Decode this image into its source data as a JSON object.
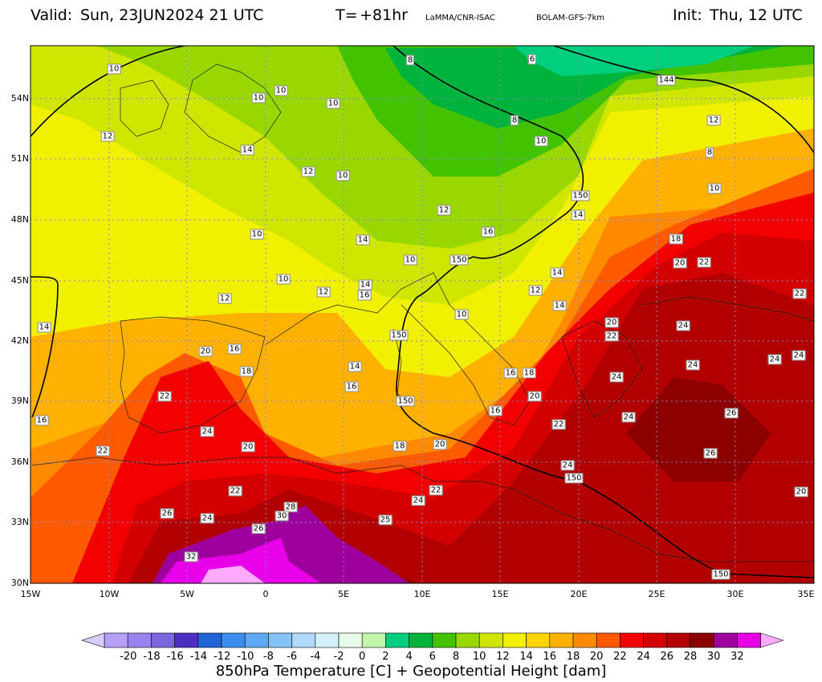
{
  "header": {
    "valid_label": "Valid:",
    "valid_value": "Sun, 23JUN2024   21 UTC",
    "t_label": "T=",
    "t_value": "+81hr",
    "credit": "LaMMA/CNR-ISAC",
    "model": "BOLAM-GFS-7km",
    "init_label": "Init:",
    "init_value": "Thu, 12 UTC"
  },
  "map": {
    "lat_ticks": [
      "54N",
      "51N",
      "48N",
      "45N",
      "42N",
      "39N",
      "36N",
      "33N",
      "30N"
    ],
    "lon_ticks": [
      "15W",
      "10W",
      "5W",
      "0",
      "5E",
      "10E",
      "15E",
      "20E",
      "25E",
      "30E",
      "35E"
    ],
    "temperature_labels": [
      "10",
      "10",
      "10",
      "10",
      "8",
      "6",
      "8",
      "10",
      "12",
      "12",
      "14",
      "12",
      "10",
      "8",
      "10",
      "12",
      "14",
      "16",
      "14",
      "10",
      "10",
      "10",
      "12",
      "12",
      "14",
      "12",
      "14",
      "10",
      "16",
      "14",
      "14",
      "16",
      "18",
      "20",
      "22",
      "20",
      "24",
      "14",
      "16",
      "18",
      "16",
      "16",
      "20",
      "20",
      "22",
      "22",
      "24",
      "24",
      "26",
      "24",
      "24",
      "26",
      "24",
      "24",
      "26",
      "28",
      "30",
      "32",
      "24",
      "22",
      "26",
      "22",
      "18",
      "20",
      "16",
      "20",
      "22",
      "18",
      "24",
      "22",
      "25",
      "22",
      "18",
      "20",
      "24"
    ],
    "height_labels": [
      "144",
      "150",
      "150",
      "150",
      "150",
      "150",
      "150"
    ]
  },
  "colorbar": {
    "ticks": [
      "-20",
      "-18",
      "-16",
      "-14",
      "-12",
      "-10",
      "-8",
      "-6",
      "-4",
      "-2",
      "0",
      "2",
      "4",
      "6",
      "8",
      "10",
      "12",
      "14",
      "16",
      "18",
      "20",
      "22",
      "24",
      "26",
      "28",
      "30",
      "32"
    ],
    "colors": [
      "#b5a0f5",
      "#9a82ee",
      "#7b66e0",
      "#4c2fc0",
      "#2065d6",
      "#3a8cee",
      "#5eaaf2",
      "#85c2f5",
      "#b0daf8",
      "#d4f1fb",
      "#e8fbe8",
      "#c2f5a8",
      "#00cf7e",
      "#00b33c",
      "#43c200",
      "#98d800",
      "#cfe600",
      "#f1f000",
      "#ffd400",
      "#ffb100",
      "#ff8a00",
      "#ff5a00",
      "#f20000",
      "#d30000",
      "#b20000",
      "#8c0000",
      "#9e009e",
      "#e800e8"
    ],
    "title": "850hPa Temperature [C] + Geopotential Height [dam]"
  }
}
